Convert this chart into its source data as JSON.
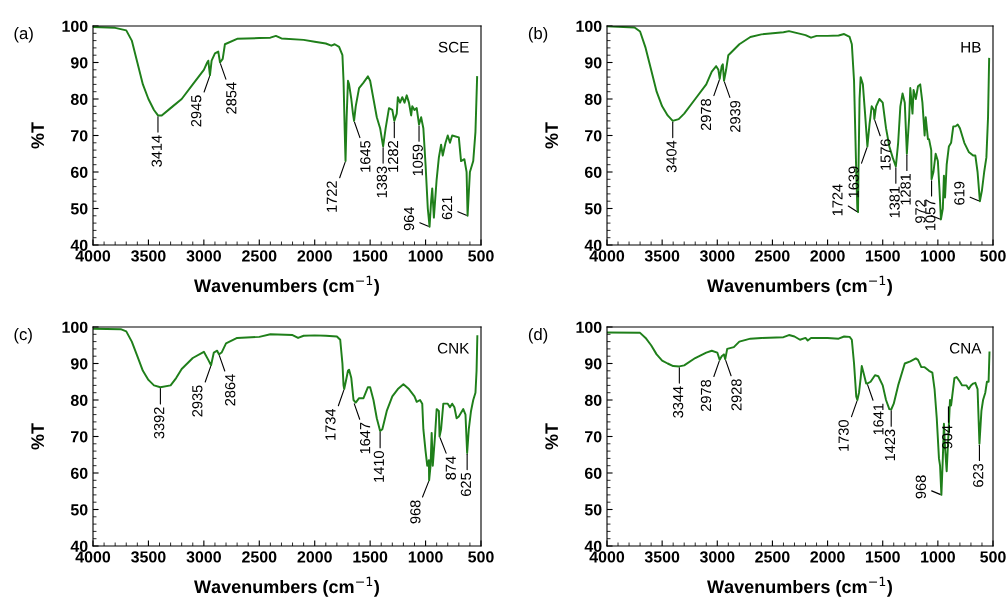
{
  "chart_data": [
    {
      "type": "line",
      "title": "(a)",
      "xlabel": "Wavenumbers (cm$^{−1}$)",
      "ylabel": "%T",
      "xlim": [
        4000,
        500
      ],
      "ylim": [
        40,
        100
      ],
      "xticks": [
        4000,
        3500,
        3000,
        2500,
        2000,
        1500,
        1000,
        500
      ],
      "yticks": [
        40,
        50,
        60,
        70,
        80,
        90,
        100
      ],
      "grid": false,
      "legend": false,
      "series": [
        {
          "name": "SCE",
          "color": "#1f7f1a",
          "x": [
            4000,
            3800,
            3700,
            3650,
            3600,
            3550,
            3500,
            3450,
            3414,
            3380,
            3300,
            3200,
            3100,
            3000,
            2970,
            2960,
            2945,
            2930,
            2900,
            2870,
            2854,
            2830,
            2810,
            2700,
            2500,
            2400,
            2350,
            2300,
            2100,
            2000,
            1900,
            1850,
            1820,
            1780,
            1750,
            1740,
            1730,
            1722,
            1712,
            1700,
            1690,
            1670,
            1655,
            1645,
            1630,
            1600,
            1560,
            1520,
            1500,
            1470,
            1440,
            1410,
            1383,
            1360,
            1330,
            1300,
            1282,
            1260,
            1250,
            1230,
            1210,
            1190,
            1170,
            1150,
            1130,
            1120,
            1100,
            1080,
            1059,
            1040,
            1020,
            1000,
            980,
            964,
            950,
            940,
            925,
            900,
            880,
            860,
            845,
            820,
            800,
            780,
            760,
            700,
            680,
            650,
            630,
            621,
            600,
            570,
            550,
            535
          ],
          "values": [
            99.7,
            99.5,
            98.8,
            96,
            90,
            84,
            80,
            77,
            75.5,
            75.5,
            77.5,
            80,
            84,
            88,
            90,
            90.5,
            86.5,
            90.5,
            92.5,
            93,
            90,
            91,
            95,
            96.5,
            96.7,
            96.8,
            97.3,
            96.6,
            96.2,
            95.7,
            95.2,
            94.6,
            95,
            94.3,
            92,
            85,
            72,
            63,
            75,
            85,
            84,
            80,
            76,
            74,
            78,
            83,
            84.5,
            86.2,
            85,
            80,
            75,
            72,
            67,
            72,
            77.5,
            77,
            74,
            76,
            80.5,
            79,
            80.5,
            79,
            81,
            79,
            75.5,
            78,
            77,
            77.5,
            73,
            75,
            72,
            62,
            50,
            45,
            52,
            55.5,
            47.5,
            58,
            64,
            67.5,
            64.5,
            68,
            70,
            68,
            70,
            69.5,
            63,
            63.5,
            60,
            48,
            60,
            63,
            71,
            86
          ]
        }
      ],
      "annotations": [
        {
          "text": "3414",
          "x": 3414,
          "y": 75.5
        },
        {
          "text": "2945",
          "x": 2945,
          "y": 86.5
        },
        {
          "text": "2854",
          "x": 2854,
          "y": 90
        },
        {
          "text": "1722",
          "x": 1722,
          "y": 63
        },
        {
          "text": "1645",
          "x": 1645,
          "y": 74
        },
        {
          "text": "1383",
          "x": 1383,
          "y": 67
        },
        {
          "text": "1282",
          "x": 1282,
          "y": 74
        },
        {
          "text": "1059",
          "x": 1059,
          "y": 73
        },
        {
          "text": "964",
          "x": 964,
          "y": 45
        },
        {
          "text": "621",
          "x": 621,
          "y": 48
        }
      ]
    },
    {
      "type": "line",
      "title": "(b)",
      "xlabel": "Wavenumbers (cm$^{−1}$)",
      "ylabel": "%T",
      "xlim": [
        4000,
        500
      ],
      "ylim": [
        40,
        100
      ],
      "xticks": [
        4000,
        3500,
        3000,
        2500,
        2000,
        1500,
        1000,
        500
      ],
      "yticks": [
        40,
        50,
        60,
        70,
        80,
        90,
        100
      ],
      "grid": false,
      "legend": false,
      "series": [
        {
          "name": "HB",
          "color": "#1f7f1a",
          "x": [
            4000,
            3750,
            3700,
            3650,
            3600,
            3550,
            3500,
            3450,
            3404,
            3350,
            3300,
            3200,
            3100,
            3050,
            3010,
            2990,
            2978,
            2960,
            2950,
            2939,
            2920,
            2900,
            2800,
            2700,
            2600,
            2400,
            2350,
            2200,
            2150,
            2100,
            2000,
            1900,
            1850,
            1800,
            1780,
            1760,
            1740,
            1730,
            1724,
            1720,
            1710,
            1700,
            1680,
            1660,
            1639,
            1620,
            1600,
            1580,
            1576,
            1560,
            1530,
            1500,
            1470,
            1440,
            1410,
            1381,
            1360,
            1340,
            1320,
            1300,
            1281,
            1260,
            1250,
            1230,
            1220,
            1200,
            1180,
            1160,
            1140,
            1120,
            1110,
            1090,
            1080,
            1060,
            1057,
            1040,
            1020,
            1000,
            985,
            972,
            955,
            945,
            935,
            920,
            900,
            880,
            860,
            840,
            820,
            800,
            760,
            720,
            680,
            660,
            640,
            619,
            600,
            580,
            560,
            545,
            535
          ],
          "values": [
            99.9,
            99.6,
            98.5,
            94,
            88,
            82,
            78,
            75.5,
            74,
            74.5,
            76,
            80,
            84,
            87.5,
            89,
            88,
            85.5,
            89,
            89.5,
            85,
            88,
            92,
            95,
            97,
            97.7,
            98.3,
            98.6,
            97.5,
            96.8,
            97.3,
            97.3,
            97.4,
            97.8,
            97,
            95,
            85,
            60,
            50,
            49,
            60,
            80,
            86,
            84,
            76,
            67,
            73,
            78,
            77,
            74.5,
            78,
            80,
            79,
            72,
            67,
            64,
            61.5,
            68,
            78,
            81.5,
            79,
            65,
            75,
            83,
            76,
            82.5,
            80,
            83.5,
            84,
            79,
            70,
            75,
            69,
            69,
            66,
            58,
            60,
            65,
            63,
            55,
            47,
            50,
            59,
            53,
            62,
            67,
            68,
            72.5,
            72.5,
            73,
            72,
            68,
            65.5,
            64.5,
            64.5,
            60,
            52,
            55,
            60,
            64,
            75,
            91
          ]
        }
      ],
      "annotations": [
        {
          "text": "3404",
          "x": 3404,
          "y": 74
        },
        {
          "text": "2978",
          "x": 2978,
          "y": 85.5
        },
        {
          "text": "2939",
          "x": 2939,
          "y": 85
        },
        {
          "text": "1724",
          "x": 1724,
          "y": 49
        },
        {
          "text": "1639",
          "x": 1639,
          "y": 67
        },
        {
          "text": "1576",
          "x": 1576,
          "y": 74.5
        },
        {
          "text": "1381",
          "x": 1381,
          "y": 61.5
        },
        {
          "text": "1281",
          "x": 1281,
          "y": 65
        },
        {
          "text": "1057",
          "x": 1057,
          "y": 58
        },
        {
          "text": "972",
          "x": 972,
          "y": 47
        },
        {
          "text": "619",
          "x": 619,
          "y": 52
        }
      ]
    },
    {
      "type": "line",
      "title": "(c)",
      "xlabel": "Wavenumbers (cm$^{−1}$)",
      "ylabel": "%T",
      "xlim": [
        4000,
        500
      ],
      "ylim": [
        40,
        100
      ],
      "xticks": [
        4000,
        3500,
        3000,
        2500,
        2000,
        1500,
        1000,
        500
      ],
      "yticks": [
        40,
        50,
        60,
        70,
        80,
        90,
        100
      ],
      "grid": false,
      "legend": false,
      "series": [
        {
          "name": "CNK",
          "color": "#1f7f1a",
          "x": [
            4000,
            3750,
            3700,
            3650,
            3600,
            3550,
            3500,
            3450,
            3392,
            3300,
            3250,
            3200,
            3100,
            3000,
            2960,
            2935,
            2910,
            2880,
            2864,
            2840,
            2800,
            2700,
            2500,
            2400,
            2200,
            2150,
            2100,
            2000,
            1900,
            1800,
            1770,
            1750,
            1740,
            1734,
            1720,
            1700,
            1690,
            1670,
            1650,
            1630,
            1600,
            1560,
            1520,
            1500,
            1470,
            1440,
            1410,
            1390,
            1350,
            1300,
            1250,
            1200,
            1150,
            1100,
            1080,
            1050,
            1030,
            1020,
            1000,
            985,
            970,
            968,
            955,
            945,
            935,
            915,
            900,
            880,
            874,
            860,
            840,
            800,
            780,
            760,
            740,
            720,
            700,
            680,
            660,
            640,
            625,
            610,
            590,
            570,
            550,
            540,
            533
          ],
          "values": [
            99.5,
            99.4,
            98.8,
            96,
            92,
            88,
            85.5,
            84,
            83.5,
            84,
            86,
            88.5,
            91.5,
            93.2,
            91,
            89.5,
            93,
            93.5,
            92.5,
            93,
            95.5,
            97,
            97.3,
            98,
            97.8,
            97,
            97.6,
            97.7,
            97.6,
            97.4,
            96.5,
            90,
            84,
            83,
            85,
            88,
            88.3,
            86,
            80,
            79.3,
            80.5,
            80.5,
            83.5,
            83.5,
            80,
            75,
            71.5,
            72,
            77,
            81,
            83,
            84.3,
            83,
            81,
            79.5,
            80,
            79,
            72,
            66,
            62,
            63.5,
            58,
            62,
            71,
            62,
            70,
            77.5,
            77,
            70,
            72,
            79,
            79,
            78,
            79,
            78,
            75,
            75.5,
            76.5,
            77.5,
            76,
            65.5,
            72,
            77,
            80,
            82,
            88,
            97.5
          ]
        }
      ],
      "annotations": [
        {
          "text": "3392",
          "x": 3392,
          "y": 83.5
        },
        {
          "text": "2935",
          "x": 2935,
          "y": 89.5
        },
        {
          "text": "2864",
          "x": 2864,
          "y": 92.5
        },
        {
          "text": "1734",
          "x": 1734,
          "y": 83
        },
        {
          "text": "1647",
          "x": 1647,
          "y": 79.3
        },
        {
          "text": "1410",
          "x": 1410,
          "y": 71.5
        },
        {
          "text": "968",
          "x": 968,
          "y": 58
        },
        {
          "text": "874",
          "x": 874,
          "y": 70
        },
        {
          "text": "625",
          "x": 625,
          "y": 65.5
        }
      ]
    },
    {
      "type": "line",
      "title": "(d)",
      "xlabel": "Wavenumbers (cm$^{−1}$)",
      "ylabel": "%T",
      "xlim": [
        4000,
        500
      ],
      "ylim": [
        40,
        100
      ],
      "xticks": [
        4000,
        3500,
        3000,
        2500,
        2000,
        1500,
        1000,
        500
      ],
      "yticks": [
        40,
        50,
        60,
        70,
        80,
        90,
        100
      ],
      "grid": false,
      "legend": false,
      "series": [
        {
          "name": "CNA",
          "color": "#1f7f1a",
          "x": [
            4000,
            3700,
            3650,
            3600,
            3550,
            3500,
            3450,
            3400,
            3344,
            3300,
            3200,
            3100,
            3050,
            3000,
            2978,
            2960,
            2940,
            2928,
            2910,
            2850,
            2800,
            2700,
            2600,
            2400,
            2350,
            2300,
            2250,
            2200,
            2180,
            2150,
            2000,
            1900,
            1850,
            1800,
            1780,
            1760,
            1740,
            1730,
            1715,
            1700,
            1690,
            1670,
            1650,
            1641,
            1610,
            1570,
            1540,
            1500,
            1470,
            1440,
            1423,
            1400,
            1360,
            1320,
            1300,
            1250,
            1200,
            1180,
            1150,
            1120,
            1080,
            1050,
            1030,
            1010,
            990,
            980,
            968,
            955,
            945,
            935,
            920,
            905,
            890,
            880,
            870,
            850,
            830,
            800,
            780,
            740,
            720,
            700,
            680,
            660,
            640,
            623,
            605,
            590,
            570,
            555,
            540,
            532
          ],
          "values": [
            98.5,
            98.4,
            97,
            95,
            92.5,
            90.8,
            90,
            89.3,
            89.2,
            89.5,
            91.5,
            93,
            93.5,
            93,
            91,
            92,
            92.5,
            91.2,
            94,
            94.5,
            96,
            96.8,
            97,
            97.2,
            97.8,
            97.4,
            96.5,
            97,
            96.3,
            97,
            97,
            96.8,
            97.4,
            97.3,
            96.5,
            90,
            81,
            80,
            82,
            86,
            89.3,
            87,
            84.5,
            84.5,
            85,
            86.8,
            86.5,
            84,
            80,
            77.5,
            77.4,
            79,
            84,
            88,
            90,
            90.6,
            91.4,
            91,
            89,
            89,
            88,
            87.5,
            83,
            75,
            64,
            62,
            54,
            64,
            73.5,
            67,
            60.5,
            70,
            80,
            78.5,
            81,
            86,
            86.3,
            85,
            84,
            84,
            83,
            84,
            84.5,
            84.7,
            83,
            68,
            77,
            80,
            82,
            85,
            85,
            93
          ]
        }
      ],
      "annotations": [
        {
          "text": "3344",
          "x": 3344,
          "y": 89.2
        },
        {
          "text": "2978",
          "x": 2978,
          "y": 91
        },
        {
          "text": "2928",
          "x": 2928,
          "y": 91.2
        },
        {
          "text": "1730",
          "x": 1730,
          "y": 80
        },
        {
          "text": "1641",
          "x": 1641,
          "y": 84.5
        },
        {
          "text": "1423",
          "x": 1423,
          "y": 77.4
        },
        {
          "text": "968",
          "x": 968,
          "y": 54
        },
        {
          "text": "904",
          "x": 904,
          "y": 78.5
        },
        {
          "text": "623",
          "x": 623,
          "y": 68
        }
      ]
    }
  ]
}
